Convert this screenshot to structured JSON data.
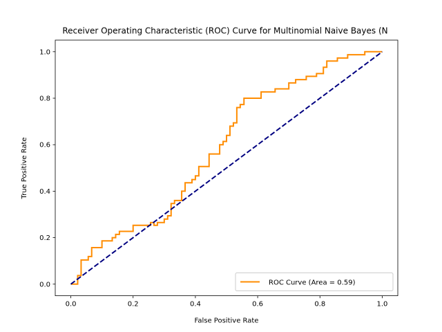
{
  "chart_data": {
    "type": "line",
    "title": "Receiver Operating Characteristic (ROC) Curve for Multinomial Naive Bayes (N",
    "xlabel": "False Positive Rate",
    "ylabel": "True Positive Rate",
    "xlim": [
      -0.05,
      1.05
    ],
    "ylim": [
      -0.05,
      1.05
    ],
    "xticks": [
      "0.0",
      "0.2",
      "0.4",
      "0.6",
      "0.8",
      "1.0"
    ],
    "yticks": [
      "0.0",
      "0.2",
      "0.4",
      "0.6",
      "0.8",
      "1.0"
    ],
    "grid": false,
    "legend_position": "lower-right",
    "series": [
      {
        "name": "ROC Curve (Area = 0.59)",
        "color": "#ff8c00",
        "style": "solid",
        "points": [
          [
            0.0,
            0.0
          ],
          [
            0.022,
            0.0
          ],
          [
            0.022,
            0.037
          ],
          [
            0.033,
            0.037
          ],
          [
            0.033,
            0.104
          ],
          [
            0.056,
            0.104
          ],
          [
            0.056,
            0.119
          ],
          [
            0.067,
            0.119
          ],
          [
            0.067,
            0.157
          ],
          [
            0.1,
            0.157
          ],
          [
            0.1,
            0.186
          ],
          [
            0.133,
            0.186
          ],
          [
            0.133,
            0.2
          ],
          [
            0.144,
            0.2
          ],
          [
            0.144,
            0.214
          ],
          [
            0.156,
            0.214
          ],
          [
            0.156,
            0.227
          ],
          [
            0.2,
            0.227
          ],
          [
            0.2,
            0.253
          ],
          [
            0.256,
            0.253
          ],
          [
            0.256,
            0.265
          ],
          [
            0.267,
            0.265
          ],
          [
            0.267,
            0.253
          ],
          [
            0.278,
            0.253
          ],
          [
            0.278,
            0.265
          ],
          [
            0.3,
            0.265
          ],
          [
            0.3,
            0.28
          ],
          [
            0.311,
            0.28
          ],
          [
            0.311,
            0.294
          ],
          [
            0.322,
            0.294
          ],
          [
            0.322,
            0.347
          ],
          [
            0.333,
            0.347
          ],
          [
            0.333,
            0.36
          ],
          [
            0.356,
            0.36
          ],
          [
            0.356,
            0.4
          ],
          [
            0.367,
            0.4
          ],
          [
            0.367,
            0.436
          ],
          [
            0.389,
            0.436
          ],
          [
            0.389,
            0.45
          ],
          [
            0.4,
            0.45
          ],
          [
            0.4,
            0.466
          ],
          [
            0.411,
            0.466
          ],
          [
            0.411,
            0.506
          ],
          [
            0.444,
            0.506
          ],
          [
            0.444,
            0.56
          ],
          [
            0.478,
            0.56
          ],
          [
            0.478,
            0.6
          ],
          [
            0.489,
            0.6
          ],
          [
            0.489,
            0.614
          ],
          [
            0.5,
            0.614
          ],
          [
            0.5,
            0.64
          ],
          [
            0.511,
            0.64
          ],
          [
            0.511,
            0.68
          ],
          [
            0.522,
            0.68
          ],
          [
            0.522,
            0.694
          ],
          [
            0.533,
            0.694
          ],
          [
            0.533,
            0.76
          ],
          [
            0.544,
            0.76
          ],
          [
            0.544,
            0.773
          ],
          [
            0.556,
            0.773
          ],
          [
            0.556,
            0.8
          ],
          [
            0.611,
            0.8
          ],
          [
            0.611,
            0.827
          ],
          [
            0.656,
            0.827
          ],
          [
            0.656,
            0.84
          ],
          [
            0.7,
            0.84
          ],
          [
            0.7,
            0.866
          ],
          [
            0.722,
            0.866
          ],
          [
            0.722,
            0.88
          ],
          [
            0.756,
            0.88
          ],
          [
            0.756,
            0.894
          ],
          [
            0.789,
            0.894
          ],
          [
            0.789,
            0.906
          ],
          [
            0.811,
            0.906
          ],
          [
            0.811,
            0.933
          ],
          [
            0.822,
            0.933
          ],
          [
            0.822,
            0.96
          ],
          [
            0.856,
            0.96
          ],
          [
            0.856,
            0.973
          ],
          [
            0.889,
            0.973
          ],
          [
            0.889,
            0.987
          ],
          [
            0.944,
            0.987
          ],
          [
            0.944,
            1.0
          ],
          [
            1.0,
            1.0
          ]
        ]
      },
      {
        "color": "#000080",
        "style": "dashed",
        "points": [
          [
            0.0,
            0.0
          ],
          [
            1.0,
            1.0
          ]
        ]
      }
    ]
  }
}
